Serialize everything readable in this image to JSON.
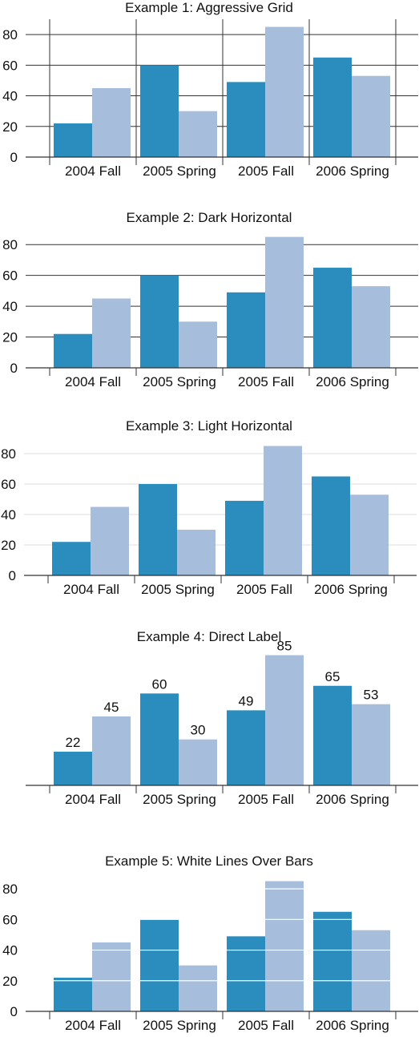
{
  "colors": {
    "series1": "#2b8cbe",
    "series2": "#a6bddb",
    "axis": "#333333",
    "dark_grid": "#333333",
    "light_grid": "#dddddd",
    "white_line": "#ffffff"
  },
  "chart_data": [
    {
      "type": "bar",
      "title": "Example 1: Aggressive Grid",
      "categories": [
        "2004 Fall",
        "2005 Spring",
        "2005 Fall",
        "2006 Spring"
      ],
      "series": [
        {
          "values": [
            22,
            60,
            49,
            65
          ]
        },
        {
          "values": [
            45,
            30,
            85,
            53
          ]
        }
      ],
      "ylim": [
        0,
        90
      ],
      "yticks": [
        "0",
        "20",
        "40",
        "60",
        "80"
      ],
      "grid": "horizontal and vertical, dark",
      "style": "aggressive"
    },
    {
      "type": "bar",
      "title": "Example 2: Dark Horizontal",
      "categories": [
        "2004 Fall",
        "2005 Spring",
        "2005 Fall",
        "2006 Spring"
      ],
      "series": [
        {
          "values": [
            22,
            60,
            49,
            65
          ]
        },
        {
          "values": [
            45,
            30,
            85,
            53
          ]
        }
      ],
      "ylim": [
        0,
        90
      ],
      "yticks": [
        "0",
        "20",
        "40",
        "60",
        "80"
      ],
      "grid": "horizontal, dark",
      "style": "dark"
    },
    {
      "type": "bar",
      "title": "Example 3: Light Horizontal",
      "categories": [
        "2004 Fall",
        "2005 Spring",
        "2005 Fall",
        "2006 Spring"
      ],
      "series": [
        {
          "values": [
            22,
            60,
            49,
            65
          ]
        },
        {
          "values": [
            45,
            30,
            85,
            53
          ]
        }
      ],
      "ylim": [
        0,
        90
      ],
      "yticks": [
        "0",
        "20",
        "40",
        "60",
        "80"
      ],
      "grid": "horizontal, light",
      "style": "light"
    },
    {
      "type": "bar",
      "title": "Example 4: Direct Label",
      "categories": [
        "2004 Fall",
        "2005 Spring",
        "2005 Fall",
        "2006 Spring"
      ],
      "series": [
        {
          "values": [
            22,
            60,
            49,
            65
          ]
        },
        {
          "values": [
            45,
            30,
            85,
            53
          ]
        }
      ],
      "ylim": [
        0,
        90
      ],
      "yticks": [],
      "grid": "none, data labels on bars",
      "style": "direct"
    },
    {
      "type": "bar",
      "title": "Example 5: White Lines Over Bars",
      "categories": [
        "2004 Fall",
        "2005 Spring",
        "2005 Fall",
        "2006 Spring"
      ],
      "series": [
        {
          "values": [
            22,
            60,
            49,
            65
          ]
        },
        {
          "values": [
            45,
            30,
            85,
            53
          ]
        }
      ],
      "ylim": [
        0,
        90
      ],
      "yticks": [
        "0",
        "20",
        "40",
        "60",
        "80"
      ],
      "grid": "white horizontal lines over bars",
      "style": "white"
    }
  ]
}
